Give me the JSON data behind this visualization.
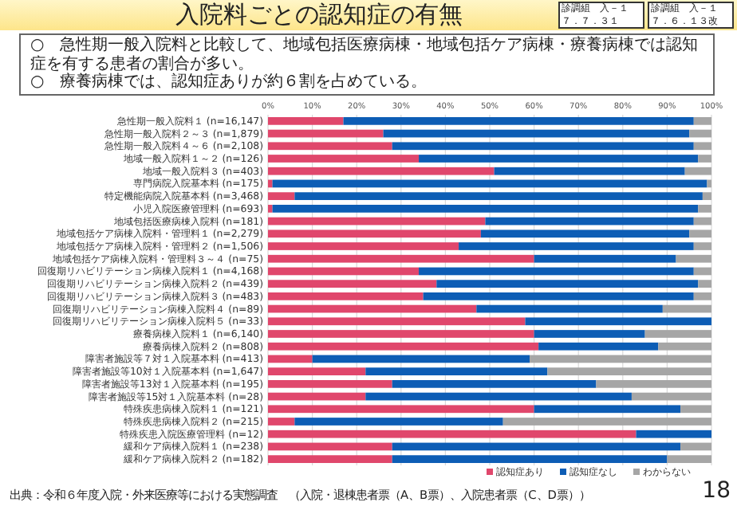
{
  "chart_data": {
    "type": "bar",
    "stacked": true,
    "orientation": "horizontal",
    "title": "入院料ごとの認知症の有無",
    "subtitle": "○　急性期一般入院料と比較して、地域包括医療病棟・地域包括ケア病棟・療養病棟では認知症を有する患者の割合が多い。\n○　療養病棟では、認知症ありが約６割を占めている。",
    "categories": [
      "急性期一般入院料１ (n=16,147)",
      "急性期一般入院料２～３ (n=1,879)",
      "急性期一般入院料４～６ (n=2,108)",
      "地域一般入院料１～２ (n=126)",
      "地域一般入院料３ (n=403)",
      "専門病院入院基本料 (n=175)",
      "特定機能病院入院基本料 (n=3,468)",
      "小児入院医療管理料 (n=693)",
      "地域包括医療病棟入院料 (n=181)",
      "地域包括ケア病棟入院料・管理料１ (n=2,279)",
      "地域包括ケア病棟入院料・管理料２ (n=1,506)",
      "地域包括ケア病棟入院料・管理料３～４ (n=75)",
      "回復期リハビリテーション病棟入院料１ (n=4,168)",
      "回復期リハビリテーション病棟入院料２ (n=439)",
      "回復期リハビリテーション病棟入院料３ (n=483)",
      "回復期リハビリテーション病棟入院料４ (n=89)",
      "回復期リハビリテーション病棟入院料５ (n=33)",
      "療養病棟入院料１ (n=6,140)",
      "療養病棟入院料２ (n=808)",
      "障害者施設等７対１入院基本料 (n=413)",
      "障害者施設等10対１入院基本料 (n=1,647)",
      "障害者施設等13対１入院基本料 (n=195)",
      "障害者施設等15対１入院基本料 (n=28)",
      "特殊疾患病棟入院料１ (n=121)",
      "特殊疾患病棟入院料２ (n=215)",
      "特殊疾患入院医療管理料 (n=12)",
      "緩和ケア病棟入院料１ (n=238)",
      "緩和ケア病棟入院料２ (n=182)"
    ],
    "series": [
      {
        "name": "認知症あり",
        "color": "#e0476c",
        "values": [
          17,
          26,
          28,
          34,
          51,
          1,
          6,
          1,
          49,
          48,
          43,
          60,
          34,
          38,
          35,
          47,
          58,
          60,
          61,
          10,
          22,
          28,
          22,
          60,
          6,
          83,
          28,
          28
        ]
      },
      {
        "name": "認知症なし",
        "color": "#0d5db5",
        "values": [
          79,
          69,
          68,
          63,
          43,
          98,
          92,
          96,
          47,
          47,
          53,
          32,
          62,
          59,
          61,
          42,
          42,
          25,
          27,
          49,
          41,
          46,
          60,
          33,
          47,
          17,
          65,
          62
        ]
      },
      {
        "name": "わからない",
        "color": "#a6a6a6",
        "values": [
          4,
          5,
          4,
          3,
          6,
          1,
          2,
          3,
          4,
          5,
          4,
          8,
          4,
          3,
          4,
          11,
          0,
          15,
          12,
          41,
          37,
          26,
          18,
          7,
          47,
          0,
          7,
          10
        ]
      }
    ],
    "xlim": [
      0,
      100
    ],
    "xticks": [
      {
        "value": 0,
        "label": "0%"
      },
      {
        "value": 10,
        "label": "10%"
      },
      {
        "value": 20,
        "label": "20%"
      },
      {
        "value": 30,
        "label": "30%"
      },
      {
        "value": 40,
        "label": "40%"
      },
      {
        "value": 50,
        "label": "50%"
      },
      {
        "value": 60,
        "label": "60%"
      },
      {
        "value": 70,
        "label": "70%"
      },
      {
        "value": 80,
        "label": "80%"
      },
      {
        "value": 90,
        "label": "90%"
      },
      {
        "value": 100,
        "label": "100%"
      }
    ],
    "grid": "x",
    "legend": "bottom",
    "annotations": [
      "出典：令和６年度入院・外来医療等における実態調査　（入院・退棟患者票（A、B票）、入院患者票（C、D票））",
      "診調組　入－１",
      "７．７．３１",
      "診調組　入－１",
      "７．６．１３改",
      "18"
    ]
  }
}
